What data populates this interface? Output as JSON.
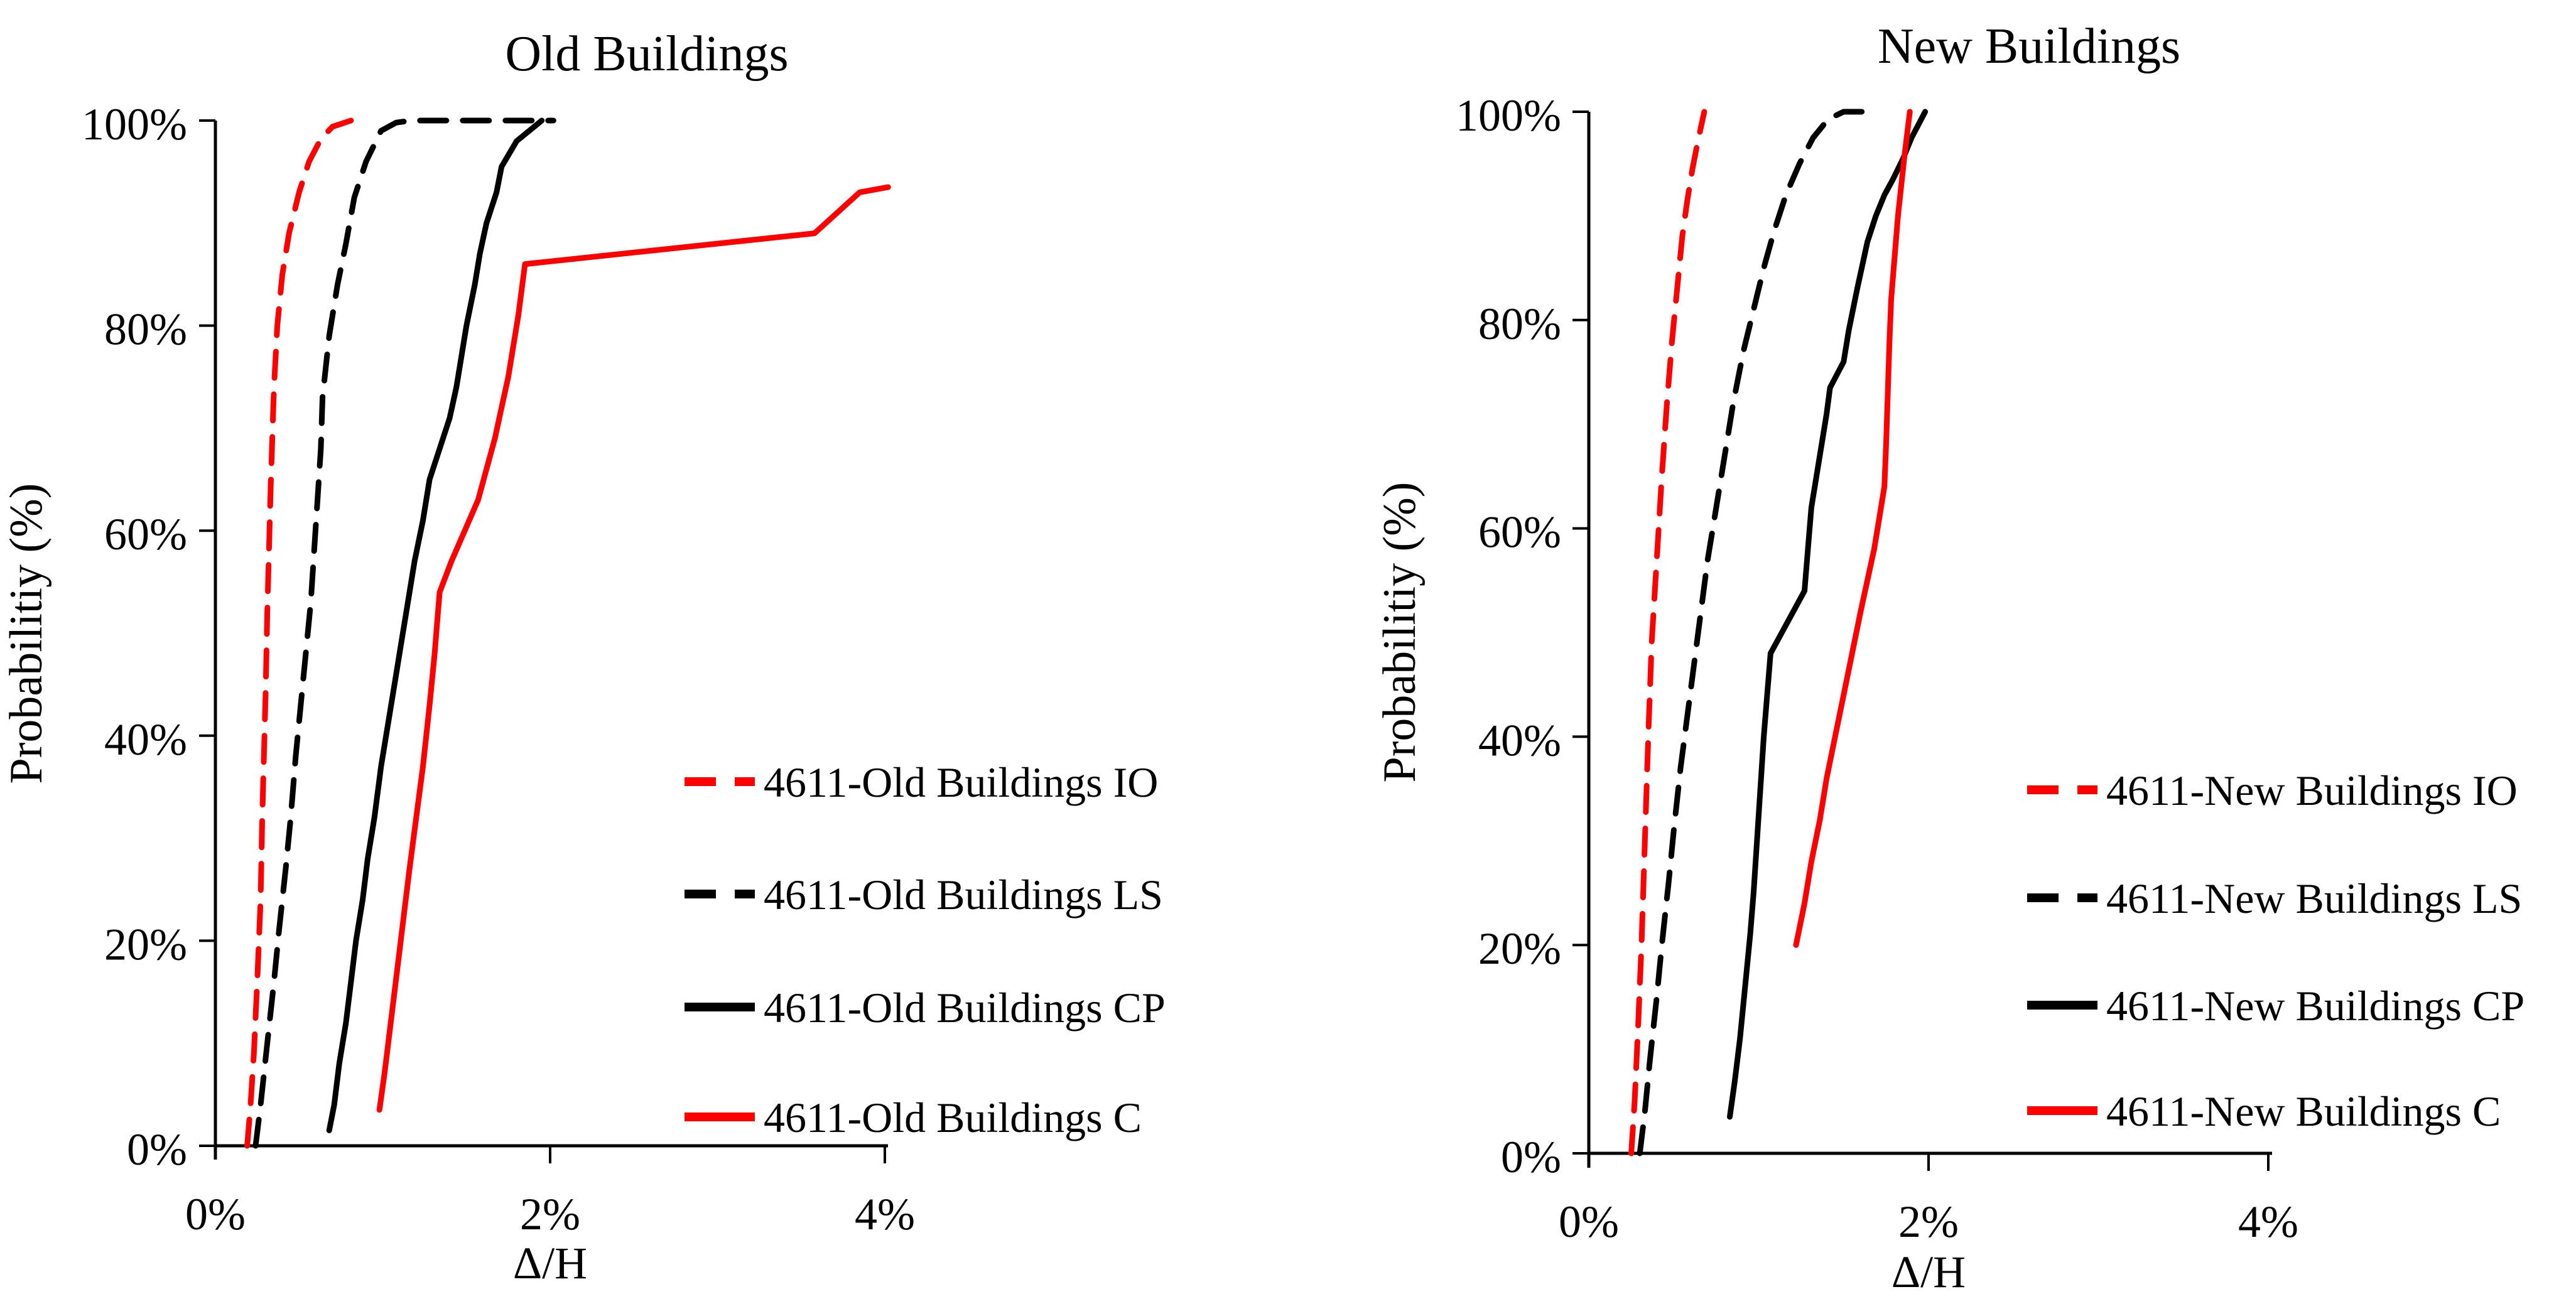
{
  "figure": {
    "background": "#FFFFFF",
    "colors": {
      "red": "#FF0000",
      "black": "#000000"
    }
  },
  "chart_data": [
    {
      "type": "line",
      "title": "Old Buildings",
      "xlabel": "Δ/H",
      "ylabel": "Probabilitiy (%)",
      "xlim": [
        0,
        4
      ],
      "ylim": [
        0,
        100
      ],
      "x_ticks": [
        0,
        2,
        4
      ],
      "x_tick_labels": [
        "0%",
        "2%",
        "4%"
      ],
      "y_ticks": [
        0,
        20,
        40,
        60,
        80,
        100
      ],
      "y_tick_labels": [
        "0%",
        "20%",
        "40%",
        "60%",
        "80%",
        "100%"
      ],
      "grid": false,
      "legend_position": "inside-right",
      "series": [
        {
          "name": "4611-Old Buildings IO",
          "color": "#FF0000",
          "style": "dashed",
          "points": [
            [
              0.19,
              0
            ],
            [
              0.21,
              4
            ],
            [
              0.23,
              9
            ],
            [
              0.25,
              16
            ],
            [
              0.27,
              24
            ],
            [
              0.28,
              32
            ],
            [
              0.3,
              44
            ],
            [
              0.31,
              52
            ],
            [
              0.32,
              58
            ],
            [
              0.33,
              64
            ],
            [
              0.34,
              69
            ],
            [
              0.35,
              74
            ],
            [
              0.37,
              80
            ],
            [
              0.4,
              85
            ],
            [
              0.44,
              89
            ],
            [
              0.5,
              93
            ],
            [
              0.56,
              96
            ],
            [
              0.63,
              98.2
            ],
            [
              0.7,
              99.4
            ],
            [
              0.81,
              100
            ]
          ]
        },
        {
          "name": "4611-Old Buildings LS",
          "color": "#000000",
          "style": "dashed",
          "points": [
            [
              0.24,
              0
            ],
            [
              0.27,
              4
            ],
            [
              0.31,
              10
            ],
            [
              0.35,
              16
            ],
            [
              0.38,
              21
            ],
            [
              0.42,
              27
            ],
            [
              0.45,
              32
            ],
            [
              0.48,
              38
            ],
            [
              0.51,
              43
            ],
            [
              0.54,
              48
            ],
            [
              0.57,
              53
            ],
            [
              0.59,
              58
            ],
            [
              0.61,
              63
            ],
            [
              0.63,
              68
            ],
            [
              0.64,
              73
            ],
            [
              0.68,
              79
            ],
            [
              0.73,
              84
            ],
            [
              0.78,
              88
            ],
            [
              0.83,
              92.5
            ],
            [
              0.9,
              96
            ],
            [
              0.99,
              99
            ],
            [
              1.08,
              99.8
            ],
            [
              1.17,
              100
            ],
            [
              2.02,
              100
            ]
          ]
        },
        {
          "name": "4611-Old Buildings CP",
          "color": "#000000",
          "style": "solid",
          "points": [
            [
              0.68,
              1.5
            ],
            [
              0.71,
              4
            ],
            [
              0.74,
              8
            ],
            [
              0.78,
              12
            ],
            [
              0.81,
              16
            ],
            [
              0.84,
              20
            ],
            [
              0.88,
              24
            ],
            [
              0.91,
              28
            ],
            [
              0.95,
              32
            ],
            [
              0.99,
              37
            ],
            [
              1.03,
              41
            ],
            [
              1.07,
              45
            ],
            [
              1.11,
              49
            ],
            [
              1.15,
              53
            ],
            [
              1.19,
              57
            ],
            [
              1.24,
              61
            ],
            [
              1.28,
              65
            ],
            [
              1.34,
              68
            ],
            [
              1.4,
              71
            ],
            [
              1.44,
              74
            ],
            [
              1.47,
              77
            ],
            [
              1.5,
              80
            ],
            [
              1.55,
              84
            ],
            [
              1.58,
              87
            ],
            [
              1.62,
              90
            ],
            [
              1.68,
              93
            ],
            [
              1.71,
              95.5
            ],
            [
              1.8,
              98
            ],
            [
              1.95,
              100
            ]
          ]
        },
        {
          "name": "4611-Old Buildings C",
          "color": "#FF0000",
          "style": "solid",
          "points": [
            [
              0.98,
              3.5
            ],
            [
              1.01,
              7
            ],
            [
              1.04,
              11
            ],
            [
              1.07,
              15
            ],
            [
              1.1,
              19
            ],
            [
              1.13,
              23
            ],
            [
              1.16,
              27
            ],
            [
              1.2,
              32
            ],
            [
              1.24,
              37
            ],
            [
              1.28,
              43
            ],
            [
              1.31,
              48
            ],
            [
              1.33,
              52
            ],
            [
              1.34,
              54
            ],
            [
              1.41,
              57
            ],
            [
              1.49,
              60
            ],
            [
              1.57,
              63
            ],
            [
              1.62,
              66
            ],
            [
              1.67,
              69
            ],
            [
              1.71,
              72
            ],
            [
              1.75,
              75
            ],
            [
              1.78,
              78
            ],
            [
              1.81,
              81
            ],
            [
              1.83,
              83.5
            ],
            [
              1.85,
              86
            ],
            [
              3.58,
              89
            ],
            [
              3.85,
              93
            ],
            [
              4.02,
              93.5
            ]
          ]
        }
      ]
    },
    {
      "type": "line",
      "title": "New Buildings",
      "xlabel": "Δ/H",
      "ylabel": "Probabilitiy (%)",
      "xlim": [
        0,
        4
      ],
      "ylim": [
        0,
        100
      ],
      "x_ticks": [
        0,
        2,
        4
      ],
      "x_tick_labels": [
        "0%",
        "2%",
        "4%"
      ],
      "y_ticks": [
        0,
        20,
        40,
        60,
        80,
        100
      ],
      "y_tick_labels": [
        "0%",
        "20%",
        "40%",
        "60%",
        "80%",
        "100%"
      ],
      "grid": false,
      "legend_position": "inside-right",
      "series": [
        {
          "name": "4611-New Buildings IO",
          "color": "#FF0000",
          "style": "dashed",
          "points": [
            [
              0.25,
              0
            ],
            [
              0.27,
              5
            ],
            [
              0.29,
              12
            ],
            [
              0.31,
              20
            ],
            [
              0.33,
              30
            ],
            [
              0.35,
              40
            ],
            [
              0.37,
              49
            ],
            [
              0.4,
              57
            ],
            [
              0.43,
              65
            ],
            [
              0.46,
              72
            ],
            [
              0.49,
              78
            ],
            [
              0.52,
              83
            ],
            [
              0.55,
              88
            ],
            [
              0.58,
              91.5
            ],
            [
              0.61,
              94.5
            ],
            [
              0.64,
              97
            ],
            [
              0.68,
              100
            ]
          ]
        },
        {
          "name": "4611-New Buildings LS",
          "color": "#000000",
          "style": "dashed",
          "points": [
            [
              0.3,
              0
            ],
            [
              0.33,
              4
            ],
            [
              0.36,
              9
            ],
            [
              0.4,
              15
            ],
            [
              0.43,
              20
            ],
            [
              0.47,
              26
            ],
            [
              0.5,
              31
            ],
            [
              0.54,
              37
            ],
            [
              0.58,
              42
            ],
            [
              0.62,
              47
            ],
            [
              0.66,
              52
            ],
            [
              0.7,
              57
            ],
            [
              0.75,
              62
            ],
            [
              0.8,
              67
            ],
            [
              0.85,
              72
            ],
            [
              0.91,
              77
            ],
            [
              0.97,
              81
            ],
            [
              1.03,
              85
            ],
            [
              1.09,
              88.5
            ],
            [
              1.16,
              92
            ],
            [
              1.24,
              95
            ],
            [
              1.32,
              97.5
            ],
            [
              1.41,
              99.3
            ],
            [
              1.5,
              100
            ],
            [
              1.64,
              100
            ]
          ]
        },
        {
          "name": "4611-New Buildings CP",
          "color": "#000000",
          "style": "solid",
          "points": [
            [
              0.83,
              3.5
            ],
            [
              0.86,
              7
            ],
            [
              0.89,
              11
            ],
            [
              0.92,
              16
            ],
            [
              0.95,
              21
            ],
            [
              0.97,
              25
            ],
            [
              0.99,
              30
            ],
            [
              1.01,
              35
            ],
            [
              1.03,
              40
            ],
            [
              1.05,
              44
            ],
            [
              1.07,
              48
            ],
            [
              1.27,
              54
            ],
            [
              1.29,
              58
            ],
            [
              1.31,
              62
            ],
            [
              1.34,
              65
            ],
            [
              1.37,
              68
            ],
            [
              1.4,
              71
            ],
            [
              1.42,
              73.5
            ],
            [
              1.5,
              76
            ],
            [
              1.53,
              79
            ],
            [
              1.58,
              83
            ],
            [
              1.64,
              87.5
            ],
            [
              1.69,
              90
            ],
            [
              1.74,
              92
            ],
            [
              1.79,
              93.5
            ],
            [
              1.85,
              95.5
            ],
            [
              1.9,
              97.5
            ],
            [
              1.98,
              100
            ]
          ]
        },
        {
          "name": "4611-New Buildings C",
          "color": "#FF0000",
          "style": "solid",
          "points": [
            [
              1.22,
              20
            ],
            [
              1.27,
              24
            ],
            [
              1.31,
              28
            ],
            [
              1.36,
              32
            ],
            [
              1.4,
              36
            ],
            [
              1.45,
              40
            ],
            [
              1.5,
              44
            ],
            [
              1.55,
              48
            ],
            [
              1.6,
              52
            ],
            [
              1.64,
              55
            ],
            [
              1.68,
              58
            ],
            [
              1.71,
              61
            ],
            [
              1.74,
              64
            ],
            [
              1.75,
              68
            ],
            [
              1.76,
              73
            ],
            [
              1.77,
              78
            ],
            [
              1.78,
              82
            ],
            [
              1.8,
              86
            ],
            [
              1.82,
              90
            ],
            [
              1.84,
              93
            ],
            [
              1.86,
              96
            ],
            [
              1.89,
              100
            ]
          ]
        }
      ]
    }
  ]
}
